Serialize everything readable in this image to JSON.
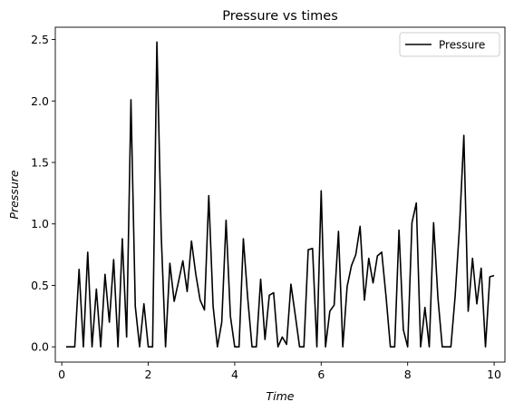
{
  "chart_data": {
    "type": "line",
    "title": "Pressure vs times",
    "xlabel": "Time",
    "ylabel": "Pressure",
    "xlim": [
      -0.15,
      10.25
    ],
    "ylim": [
      -0.124,
      2.6
    ],
    "xticks": [
      0,
      2,
      4,
      6,
      8,
      10
    ],
    "yticks": [
      0.0,
      0.5,
      1.0,
      1.5,
      2.0,
      2.5
    ],
    "xtick_labels": [
      "0",
      "2",
      "4",
      "6",
      "8",
      "10"
    ],
    "ytick_labels": [
      "0.0",
      "0.5",
      "1.0",
      "1.5",
      "2.0",
      "2.5"
    ],
    "grid": false,
    "legend_position": "top-right",
    "series": [
      {
        "name": "Pressure",
        "color": "#000000",
        "x": [
          0.1,
          0.2,
          0.3,
          0.4,
          0.5,
          0.6,
          0.7,
          0.8,
          0.9,
          1.0,
          1.1,
          1.2,
          1.3,
          1.4,
          1.5,
          1.6,
          1.7,
          1.8,
          1.9,
          2.0,
          2.1,
          2.2,
          2.3,
          2.4,
          2.5,
          2.6,
          2.7,
          2.8,
          2.9,
          3.0,
          3.1,
          3.2,
          3.3,
          3.4,
          3.5,
          3.6,
          3.7,
          3.8,
          3.9,
          4.0,
          4.1,
          4.2,
          4.3,
          4.4,
          4.5,
          4.6,
          4.7,
          4.8,
          4.9,
          5.0,
          5.1,
          5.2,
          5.3,
          5.4,
          5.5,
          5.6,
          5.7,
          5.8,
          5.9,
          6.0,
          6.1,
          6.2,
          6.3,
          6.4,
          6.5,
          6.6,
          6.7,
          6.8,
          6.9,
          7.0,
          7.1,
          7.2,
          7.3,
          7.4,
          7.5,
          7.6,
          7.7,
          7.8,
          7.9,
          8.0,
          8.1,
          8.2,
          8.3,
          8.4,
          8.5,
          8.6,
          8.7,
          8.8,
          8.9,
          9.0,
          9.1,
          9.2,
          9.3,
          9.4,
          9.5,
          9.6,
          9.7,
          9.8,
          9.9,
          10.0
        ],
        "values": [
          0.0,
          0.0,
          0.0,
          0.63,
          0.0,
          0.77,
          0.0,
          0.47,
          0.0,
          0.59,
          0.2,
          0.71,
          0.0,
          0.88,
          0.08,
          2.01,
          0.33,
          0.0,
          0.35,
          0.0,
          0.0,
          2.48,
          0.91,
          0.0,
          0.68,
          0.37,
          0.53,
          0.7,
          0.45,
          0.86,
          0.59,
          0.38,
          0.3,
          1.23,
          0.33,
          0.0,
          0.2,
          1.03,
          0.25,
          0.0,
          0.0,
          0.88,
          0.4,
          0.0,
          0.0,
          0.55,
          0.06,
          0.42,
          0.44,
          0.0,
          0.08,
          0.02,
          0.51,
          0.26,
          0.0,
          0.0,
          0.79,
          0.8,
          0.0,
          1.27,
          0.0,
          0.29,
          0.34,
          0.94,
          0.0,
          0.49,
          0.66,
          0.75,
          0.98,
          0.38,
          0.72,
          0.52,
          0.74,
          0.77,
          0.41,
          0.0,
          0.0,
          0.95,
          0.14,
          0.0,
          1.01,
          1.17,
          0.0,
          0.32,
          0.0,
          1.01,
          0.4,
          0.0,
          0.0,
          0.0,
          0.42,
          0.98,
          1.72,
          0.29,
          0.72,
          0.35,
          0.64,
          0.0,
          0.57,
          0.58
        ]
      }
    ]
  }
}
